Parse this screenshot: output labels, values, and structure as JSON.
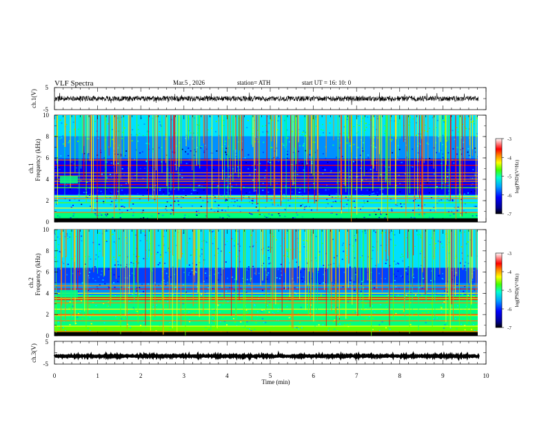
{
  "header": {
    "title": "VLF  Spectra",
    "date": "Mar.5  , 2026",
    "station": "station= ATH",
    "start": "start  UT  =    16: 10: 0"
  },
  "chart_data": [
    {
      "type": "line",
      "panel": "ch1-waveform",
      "ylabel": "ch.1(V)",
      "ylim": [
        -5,
        5
      ],
      "y_ticks": [
        "5",
        "-5"
      ],
      "description_values": {
        "baseline": 0,
        "amplitude": 1.2
      }
    },
    {
      "type": "heatmap",
      "panel": "ch1-spectrogram",
      "ylabel_top": "ch.1",
      "ylabel": "Frequency  (kHz)",
      "ylim": [
        0,
        10
      ],
      "y_ticks": [
        "0",
        "2",
        "4",
        "6",
        "8",
        "10"
      ],
      "horizontal_bands_khz": [
        0.2,
        0.5,
        0.9,
        1.3,
        1.8,
        2.2,
        2.4,
        3.2,
        3.5,
        3.8,
        4.0,
        4.3,
        4.6,
        5.3,
        5.8
      ],
      "colorbar": {
        "label": "log(PSD)(V²/Hz)",
        "range": [
          -7,
          -3
        ],
        "ticks": [
          "-3",
          "-4",
          "-5",
          "-6",
          "-7"
        ]
      }
    },
    {
      "type": "heatmap",
      "panel": "ch2-spectrogram",
      "ylabel_top": "ch.2",
      "ylabel": "Frequency  (kHz)",
      "ylim": [
        0,
        10
      ],
      "y_ticks": [
        "0",
        "2",
        "4",
        "6",
        "8",
        "10"
      ],
      "horizontal_bands_khz": [
        0.4,
        0.9,
        1.4,
        1.9,
        2.0,
        2.5,
        3.1,
        3.4,
        3.6,
        4.0,
        4.4,
        4.7
      ],
      "colorbar": {
        "label": "log(PSD)(V²/Hz)",
        "range": [
          -7,
          -3
        ],
        "ticks": [
          "-3",
          "-4",
          "-5",
          "-6",
          "-7"
        ]
      }
    },
    {
      "type": "line",
      "panel": "ch3-waveform",
      "ylabel": "ch.3(V)",
      "ylim": [
        -5,
        5
      ],
      "y_ticks": [
        "5",
        "-5"
      ],
      "description_values": {
        "baseline": -1.5,
        "amplitude": 0.2
      }
    }
  ],
  "x_axis": {
    "xlabel": "Time  (min)",
    "xlim": [
      0,
      10
    ],
    "data_end_min": 9.83,
    "ticks": [
      "0",
      "1",
      "2",
      "3",
      "4",
      "5",
      "6",
      "7",
      "8",
      "9",
      "10"
    ]
  },
  "colormap": [
    "#000080",
    "#0000ff",
    "#0040ff",
    "#0090ff",
    "#00e0ff",
    "#00ff80",
    "#60ff00",
    "#ffff00",
    "#ff8000",
    "#ff0000",
    "#ff8080",
    "#ffffff"
  ]
}
